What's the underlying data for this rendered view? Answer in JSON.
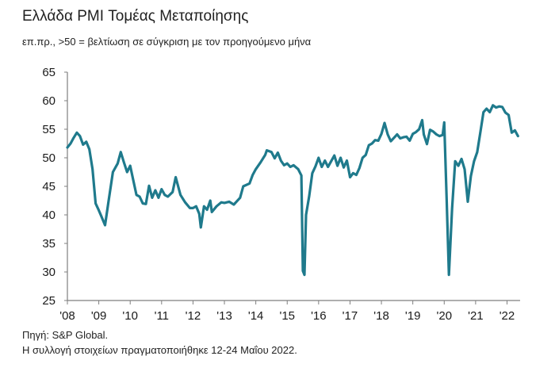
{
  "header": {
    "title": "Ελλάδα PMI Τομέας Μεταποίησης",
    "subtitle": "επ.πρ., >50 = βελτίωση σε σύγκριση με τον προηγούμενο μήνα"
  },
  "footer": {
    "source": "Πηγή: S&P Global.",
    "note": "Η συλλογή στοιχείων πραγματοποιήθηκε 12-24 Μαΐου 2022."
  },
  "chart_data": {
    "type": "line",
    "title": "Ελλάδα PMI Τομέας Μεταποίησης",
    "xlabel": "",
    "ylabel": "",
    "ylim": [
      25,
      65
    ],
    "yticks": [
      25,
      30,
      35,
      40,
      45,
      50,
      55,
      60,
      65
    ],
    "xlim": [
      2008.0,
      2022.417
    ],
    "xticks": [
      2008,
      2009,
      2010,
      2011,
      2012,
      2013,
      2014,
      2015,
      2016,
      2017,
      2018,
      2019,
      2020,
      2021,
      2022
    ],
    "xtick_labels": [
      "'08",
      "'09",
      "'10",
      "'11",
      "'12",
      "'13",
      "'14",
      "'15",
      "'16",
      "'17",
      "'18",
      "'19",
      "'20",
      "'21",
      "'22"
    ],
    "grid": false,
    "line_color": "#1f7a8c",
    "series": [
      {
        "points": [
          [
            2008.0,
            51.8
          ],
          [
            2008.1,
            52.5
          ],
          [
            2008.2,
            53.5
          ],
          [
            2008.3,
            54.4
          ],
          [
            2008.4,
            53.8
          ],
          [
            2008.5,
            52.3
          ],
          [
            2008.6,
            52.8
          ],
          [
            2008.7,
            51.5
          ],
          [
            2008.8,
            48.0
          ],
          [
            2008.9,
            42.0
          ],
          [
            2009.0,
            40.8
          ],
          [
            2009.1,
            39.5
          ],
          [
            2009.2,
            38.2
          ],
          [
            2009.3,
            42.0
          ],
          [
            2009.45,
            47.5
          ],
          [
            2009.6,
            49.0
          ],
          [
            2009.7,
            51.0
          ],
          [
            2009.8,
            49.2
          ],
          [
            2009.9,
            47.5
          ],
          [
            2010.0,
            48.6
          ],
          [
            2010.1,
            46.0
          ],
          [
            2010.2,
            43.5
          ],
          [
            2010.3,
            43.2
          ],
          [
            2010.4,
            42.0
          ],
          [
            2010.5,
            41.9
          ],
          [
            2010.6,
            45.1
          ],
          [
            2010.7,
            43.0
          ],
          [
            2010.8,
            44.3
          ],
          [
            2010.9,
            43.0
          ],
          [
            2011.0,
            44.5
          ],
          [
            2011.1,
            43.5
          ],
          [
            2011.2,
            43.2
          ],
          [
            2011.35,
            44.0
          ],
          [
            2011.45,
            46.6
          ],
          [
            2011.6,
            43.5
          ],
          [
            2011.75,
            42.2
          ],
          [
            2011.9,
            41.2
          ],
          [
            2012.0,
            41.2
          ],
          [
            2012.1,
            41.5
          ],
          [
            2012.2,
            40.2
          ],
          [
            2012.25,
            37.8
          ],
          [
            2012.35,
            41.5
          ],
          [
            2012.45,
            40.9
          ],
          [
            2012.55,
            42.5
          ],
          [
            2012.6,
            40.5
          ],
          [
            2012.75,
            41.5
          ],
          [
            2012.9,
            42.2
          ],
          [
            2013.0,
            42.1
          ],
          [
            2013.15,
            42.3
          ],
          [
            2013.3,
            41.8
          ],
          [
            2013.5,
            43.0
          ],
          [
            2013.6,
            45.0
          ],
          [
            2013.8,
            45.5
          ],
          [
            2013.9,
            47.0
          ],
          [
            2014.0,
            48.0
          ],
          [
            2014.15,
            49.2
          ],
          [
            2014.3,
            50.5
          ],
          [
            2014.35,
            51.3
          ],
          [
            2014.5,
            51.0
          ],
          [
            2014.6,
            49.9
          ],
          [
            2014.7,
            50.9
          ],
          [
            2014.8,
            49.5
          ],
          [
            2014.9,
            48.7
          ],
          [
            2015.0,
            49.0
          ],
          [
            2015.1,
            48.4
          ],
          [
            2015.2,
            48.7
          ],
          [
            2015.35,
            48.0
          ],
          [
            2015.45,
            46.9
          ],
          [
            2015.5,
            30.2
          ],
          [
            2015.55,
            29.5
          ],
          [
            2015.6,
            40.0
          ],
          [
            2015.7,
            43.3
          ],
          [
            2015.8,
            47.3
          ],
          [
            2015.9,
            48.5
          ],
          [
            2016.0,
            50.0
          ],
          [
            2016.1,
            48.4
          ],
          [
            2016.2,
            49.5
          ],
          [
            2016.3,
            48.4
          ],
          [
            2016.4,
            49.4
          ],
          [
            2016.5,
            50.4
          ],
          [
            2016.6,
            48.6
          ],
          [
            2016.7,
            50.0
          ],
          [
            2016.8,
            48.3
          ],
          [
            2016.9,
            49.5
          ],
          [
            2017.0,
            46.6
          ],
          [
            2017.1,
            47.3
          ],
          [
            2017.2,
            47.0
          ],
          [
            2017.3,
            48.2
          ],
          [
            2017.4,
            50.0
          ],
          [
            2017.5,
            50.5
          ],
          [
            2017.6,
            52.2
          ],
          [
            2017.7,
            52.5
          ],
          [
            2017.8,
            53.1
          ],
          [
            2017.9,
            53.0
          ],
          [
            2018.0,
            54.2
          ],
          [
            2018.1,
            56.1
          ],
          [
            2018.2,
            54.1
          ],
          [
            2018.3,
            52.9
          ],
          [
            2018.4,
            53.5
          ],
          [
            2018.5,
            54.1
          ],
          [
            2018.6,
            53.4
          ],
          [
            2018.7,
            53.6
          ],
          [
            2018.8,
            53.7
          ],
          [
            2018.9,
            53.0
          ],
          [
            2019.0,
            54.2
          ],
          [
            2019.1,
            54.5
          ],
          [
            2019.2,
            55.0
          ],
          [
            2019.3,
            56.6
          ],
          [
            2019.35,
            54.1
          ],
          [
            2019.45,
            52.4
          ],
          [
            2019.55,
            54.9
          ],
          [
            2019.65,
            54.6
          ],
          [
            2019.75,
            54.1
          ],
          [
            2019.85,
            53.8
          ],
          [
            2019.95,
            54.0
          ],
          [
            2020.0,
            56.2
          ],
          [
            2020.08,
            42.5
          ],
          [
            2020.15,
            29.5
          ],
          [
            2020.25,
            41.1
          ],
          [
            2020.35,
            49.4
          ],
          [
            2020.45,
            48.6
          ],
          [
            2020.55,
            49.8
          ],
          [
            2020.65,
            48.0
          ],
          [
            2020.75,
            42.3
          ],
          [
            2020.85,
            46.8
          ],
          [
            2020.95,
            49.4
          ],
          [
            2021.05,
            51.0
          ],
          [
            2021.15,
            54.4
          ],
          [
            2021.25,
            58.0
          ],
          [
            2021.35,
            58.6
          ],
          [
            2021.45,
            58.0
          ],
          [
            2021.55,
            59.2
          ],
          [
            2021.65,
            58.8
          ],
          [
            2021.75,
            59.0
          ],
          [
            2021.85,
            58.9
          ],
          [
            2021.95,
            57.9
          ],
          [
            2022.05,
            57.5
          ],
          [
            2022.15,
            54.4
          ],
          [
            2022.25,
            54.8
          ],
          [
            2022.35,
            53.8
          ]
        ]
      }
    ]
  }
}
